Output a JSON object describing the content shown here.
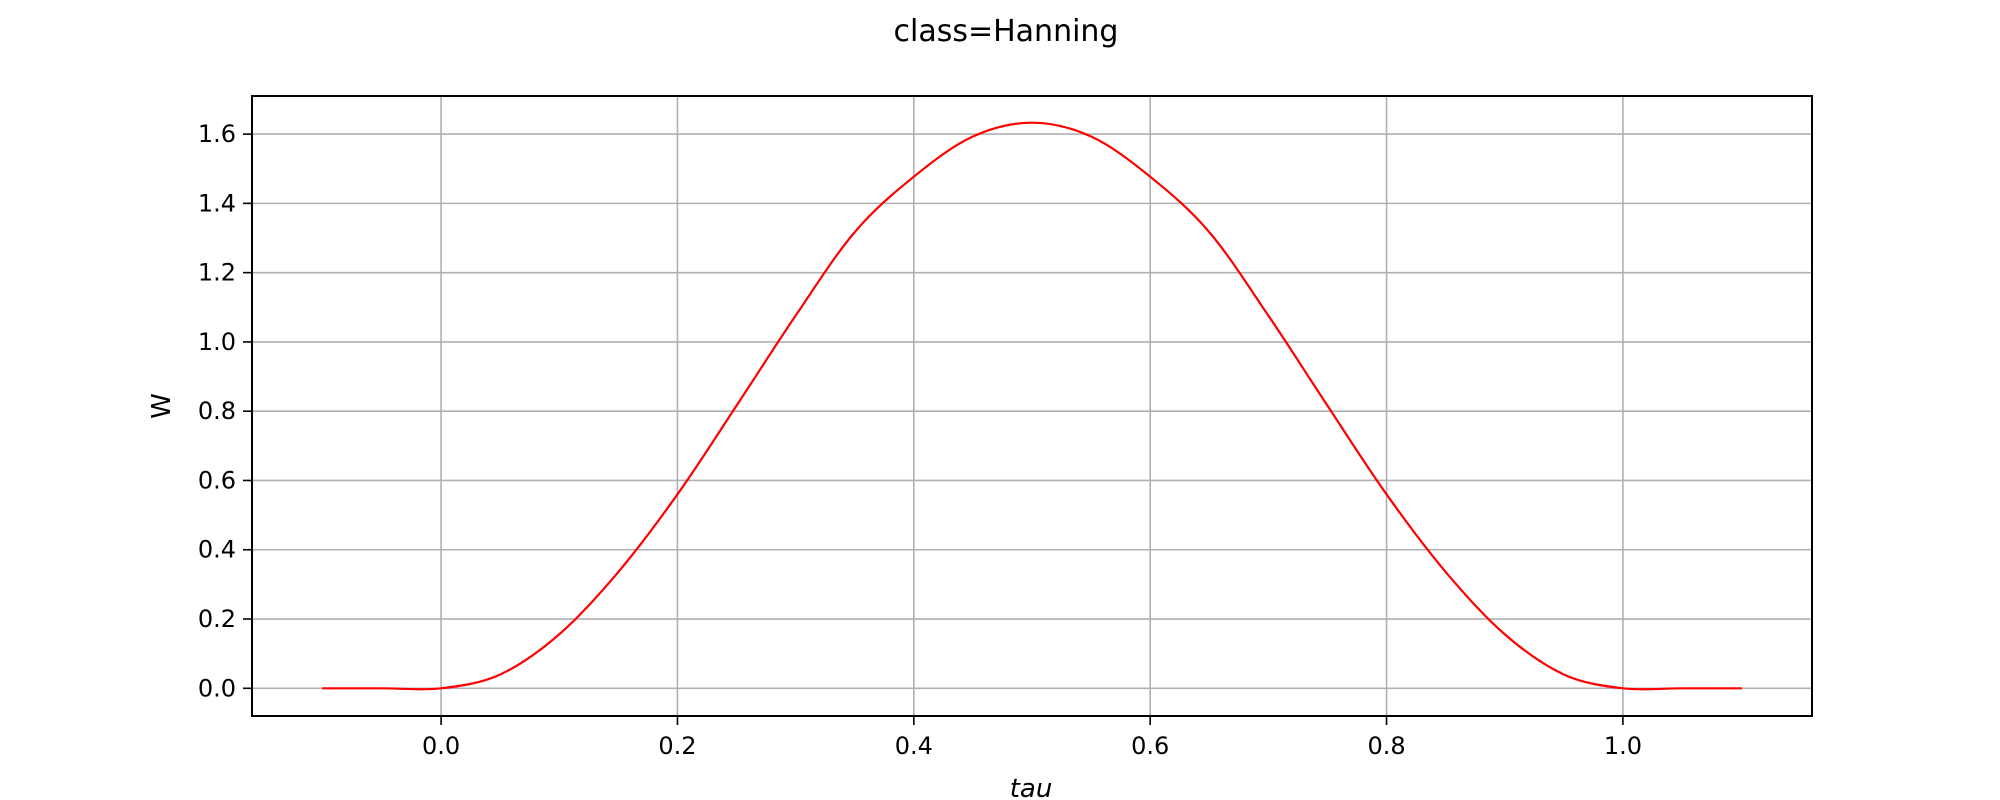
{
  "chart_data": {
    "type": "line",
    "title": "class=Hanning",
    "xlabel": "tau",
    "ylabel": "W",
    "xlim": [
      -0.16,
      1.16
    ],
    "ylim": [
      -0.08,
      1.71
    ],
    "x_ticks": [
      "0.0",
      "0.2",
      "0.4",
      "0.6",
      "0.8",
      "1.0"
    ],
    "x_tick_values": [
      0.0,
      0.2,
      0.4,
      0.6,
      0.8,
      1.0
    ],
    "y_ticks": [
      "0.0",
      "0.2",
      "0.4",
      "0.6",
      "0.8",
      "1.0",
      "1.2",
      "1.4",
      "1.6"
    ],
    "y_tick_values": [
      0.0,
      0.2,
      0.4,
      0.6,
      0.8,
      1.0,
      1.2,
      1.4,
      1.6
    ],
    "grid": true,
    "series": [
      {
        "color": "#ff0000",
        "x": [
          -0.1,
          -0.05,
          0.0,
          0.05,
          0.1,
          0.15,
          0.2,
          0.25,
          0.3,
          0.35,
          0.4,
          0.45,
          0.5,
          0.55,
          0.6,
          0.65,
          0.7,
          0.75,
          0.8,
          0.85,
          0.9,
          0.95,
          1.0,
          1.05,
          1.1
        ],
        "y": [
          0.0,
          0.0,
          0.0,
          0.04,
          0.156,
          0.336,
          0.56,
          0.816,
          1.076,
          1.317,
          1.477,
          1.593,
          1.633,
          1.593,
          1.477,
          1.317,
          1.076,
          0.816,
          0.56,
          0.336,
          0.156,
          0.04,
          0.0,
          0.0,
          0.0
        ]
      }
    ]
  }
}
